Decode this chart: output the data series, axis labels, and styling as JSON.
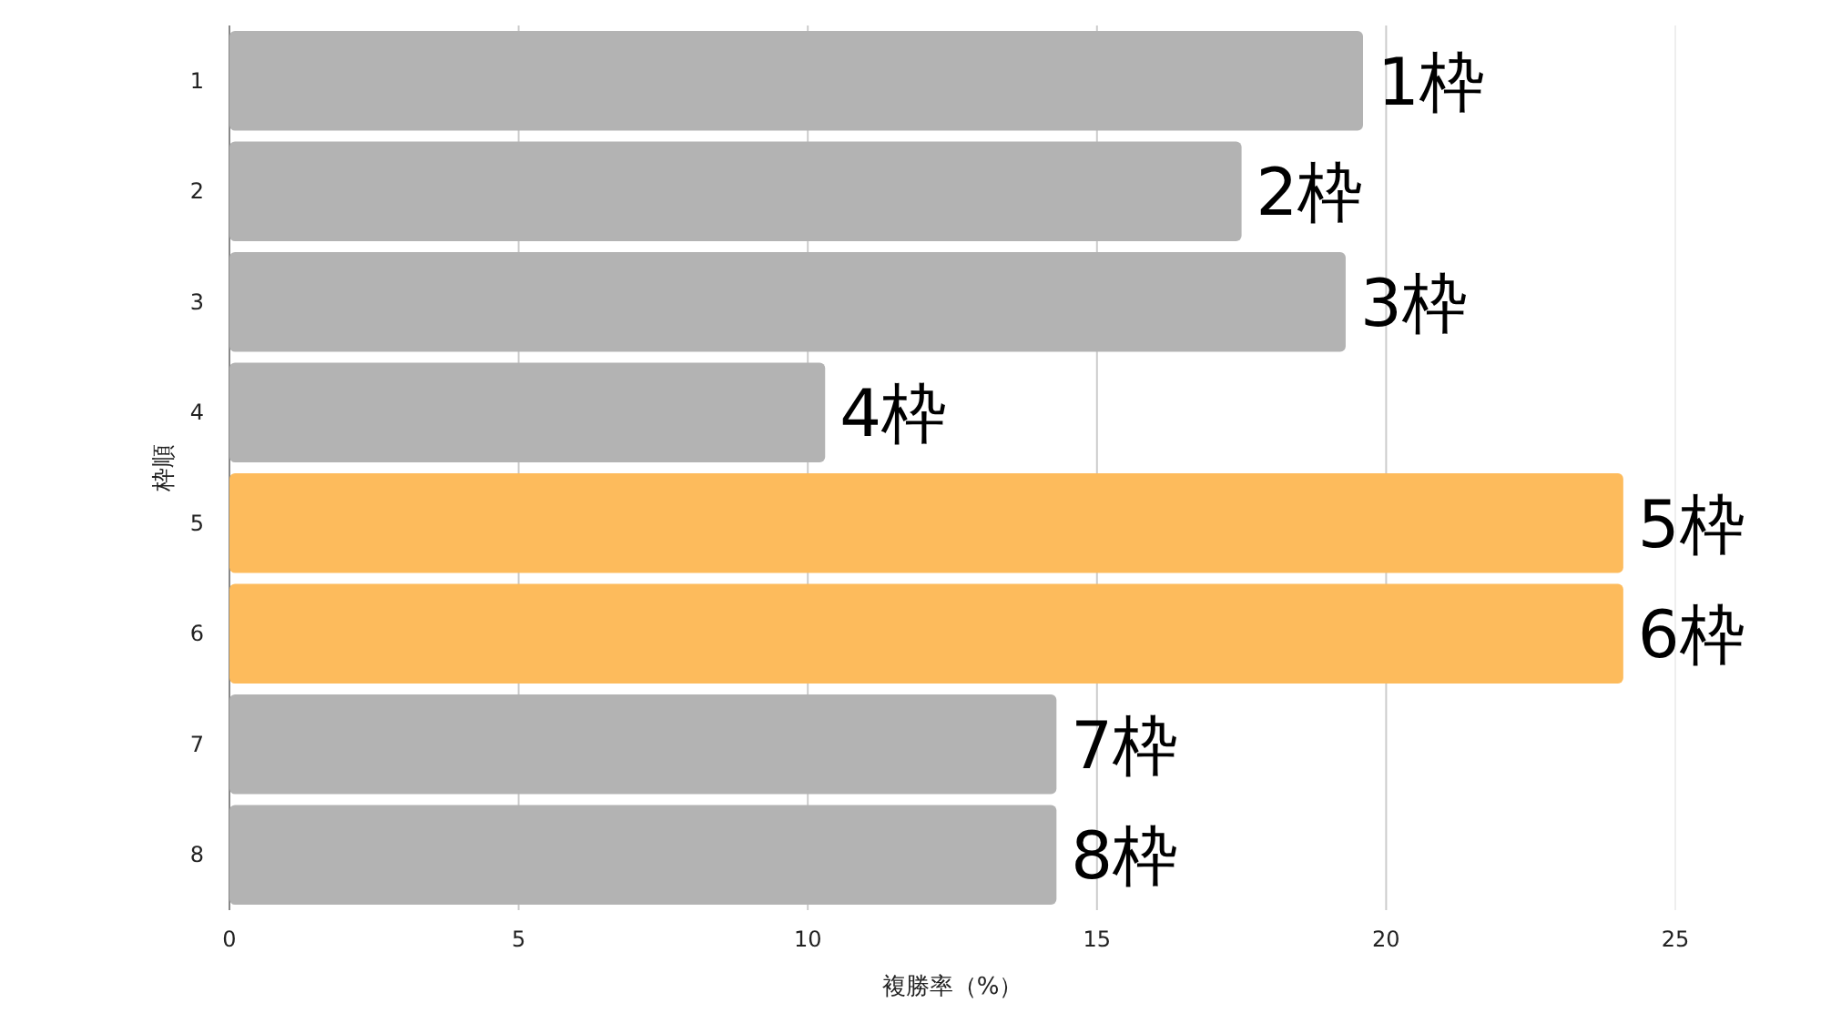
{
  "chart_data": {
    "type": "bar",
    "orientation": "horizontal",
    "xlabel": "複勝率（%）",
    "ylabel": "枠順",
    "categories": [
      "1",
      "2",
      "3",
      "4",
      "5",
      "6",
      "7",
      "8"
    ],
    "values": [
      19.6,
      17.5,
      19.3,
      10.3,
      24.1,
      24.1,
      14.3,
      14.3
    ],
    "colors": [
      "#b3b3b3",
      "#b3b3b3",
      "#b3b3b3",
      "#b3b3b3",
      "#fdbb5c",
      "#fdbb5c",
      "#b3b3b3",
      "#b3b3b3"
    ],
    "annotations": [
      {
        "text": "1枠",
        "x": 19.6,
        "y": "1"
      },
      {
        "text": "2枠",
        "x": 17.5,
        "y": "2"
      },
      {
        "text": "3枠",
        "x": 19.3,
        "y": "3"
      },
      {
        "text": "4枠",
        "x": 10.3,
        "y": "4"
      },
      {
        "text": "5枠",
        "x": 24.1,
        "y": "5"
      },
      {
        "text": "6枠",
        "x": 24.1,
        "y": "6"
      },
      {
        "text": "7枠",
        "x": 14.3,
        "y": "7"
      },
      {
        "text": "8枠",
        "x": 14.3,
        "y": "8"
      }
    ],
    "xlim": [
      0,
      25
    ],
    "xticks": [
      0,
      5,
      10,
      15,
      20,
      25
    ],
    "grid": "x"
  }
}
